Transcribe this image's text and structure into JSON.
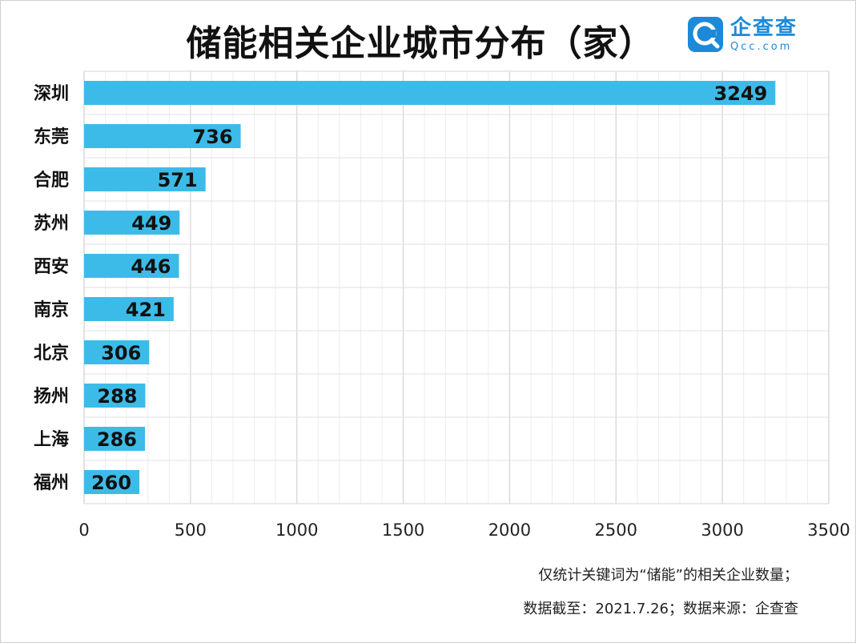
{
  "title": "储能相关企业城市分布（家）",
  "logo": {
    "name": "企查查",
    "domain": "Qcc.com",
    "icon": "qcc-logo-icon",
    "color": "#1c8ad8"
  },
  "notes": [
    "仅统计关键词为“储能”的相关企业数量；",
    "数据截至：2021.7.26；数据来源：企查查"
  ],
  "chart_data": {
    "type": "bar",
    "orientation": "horizontal",
    "categories": [
      "深圳",
      "东莞",
      "合肥",
      "苏州",
      "西安",
      "南京",
      "北京",
      "扬州",
      "上海",
      "福州"
    ],
    "values": [
      3249,
      736,
      571,
      449,
      446,
      421,
      306,
      288,
      286,
      260
    ],
    "xlim": [
      0,
      3500
    ],
    "x_ticks": [
      0,
      500,
      1000,
      1500,
      2000,
      2500,
      3000,
      3500
    ],
    "grid": true,
    "bar_color": "#3dbbe8",
    "data_labels": true
  }
}
